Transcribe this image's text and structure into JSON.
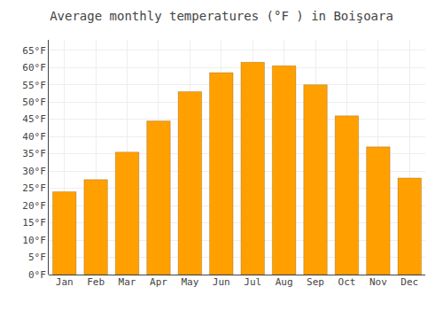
{
  "chart_data": {
    "type": "bar",
    "title": "Average monthly temperatures (°F ) in Boişoara",
    "categories": [
      "Jan",
      "Feb",
      "Mar",
      "Apr",
      "May",
      "Jun",
      "Jul",
      "Aug",
      "Sep",
      "Oct",
      "Nov",
      "Dec"
    ],
    "values": [
      24,
      27.5,
      35.5,
      44.5,
      53,
      58.5,
      61.5,
      60.5,
      55,
      46,
      37,
      28
    ],
    "color": "#FFA000",
    "ylim": [
      0,
      68
    ],
    "yticks": [
      {
        "value": 0,
        "label": "0°F"
      },
      {
        "value": 5,
        "label": "5°F"
      },
      {
        "value": 10,
        "label": "10°F"
      },
      {
        "value": 15,
        "label": "15°F"
      },
      {
        "value": 20,
        "label": "20°F"
      },
      {
        "value": 25,
        "label": "25°F"
      },
      {
        "value": 30,
        "label": "30°F"
      },
      {
        "value": 35,
        "label": "35°F"
      },
      {
        "value": 40,
        "label": "40°F"
      },
      {
        "value": 45,
        "label": "45°F"
      },
      {
        "value": 50,
        "label": "50°F"
      },
      {
        "value": 55,
        "label": "55°F"
      },
      {
        "value": 60,
        "label": "60°F"
      },
      {
        "value": 65,
        "label": "65°F"
      }
    ],
    "grid": true
  }
}
